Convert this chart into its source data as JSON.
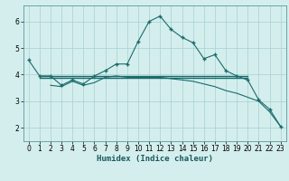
{
  "xlabel": "Humidex (Indice chaleur)",
  "bg_color": "#d4eeee",
  "grid_color": "#aed4d4",
  "line_color": "#1a6b6b",
  "xlim": [
    -0.5,
    23.5
  ],
  "ylim": [
    1.5,
    6.6
  ],
  "yticks": [
    2,
    3,
    4,
    5,
    6
  ],
  "xticks": [
    0,
    1,
    2,
    3,
    4,
    5,
    6,
    7,
    8,
    9,
    10,
    11,
    12,
    13,
    14,
    15,
    16,
    17,
    18,
    19,
    20,
    21,
    22,
    23
  ],
  "curve1_x": [
    0,
    1,
    2,
    3,
    4,
    5,
    6,
    7,
    8,
    9,
    10,
    11,
    12,
    13,
    14,
    15,
    16,
    17,
    18,
    19,
    20,
    21,
    22,
    23
  ],
  "curve1_y": [
    4.55,
    3.95,
    3.95,
    3.6,
    3.8,
    3.65,
    3.95,
    4.15,
    4.4,
    4.4,
    5.25,
    6.0,
    6.2,
    5.7,
    5.4,
    5.2,
    4.6,
    4.75,
    4.15,
    3.95,
    3.8,
    3.05,
    2.7,
    2.05
  ],
  "line_h1_y": 3.95,
  "line_h1_x_start": 1,
  "line_h1_x_end": 20,
  "line_h2_y": 3.88,
  "line_h2_x_start": 1,
  "line_h2_x_end": 20,
  "curve2_x": [
    2,
    3,
    4,
    5,
    6,
    7,
    8,
    9,
    10,
    11,
    12,
    13,
    14,
    15,
    16,
    17,
    18,
    19,
    20,
    21,
    22,
    23
  ],
  "curve2_y": [
    3.6,
    3.55,
    3.75,
    3.6,
    3.7,
    3.9,
    3.95,
    3.9,
    3.9,
    3.9,
    3.9,
    3.85,
    3.8,
    3.75,
    3.65,
    3.55,
    3.4,
    3.3,
    3.15,
    3.0,
    2.6,
    2.05
  ]
}
